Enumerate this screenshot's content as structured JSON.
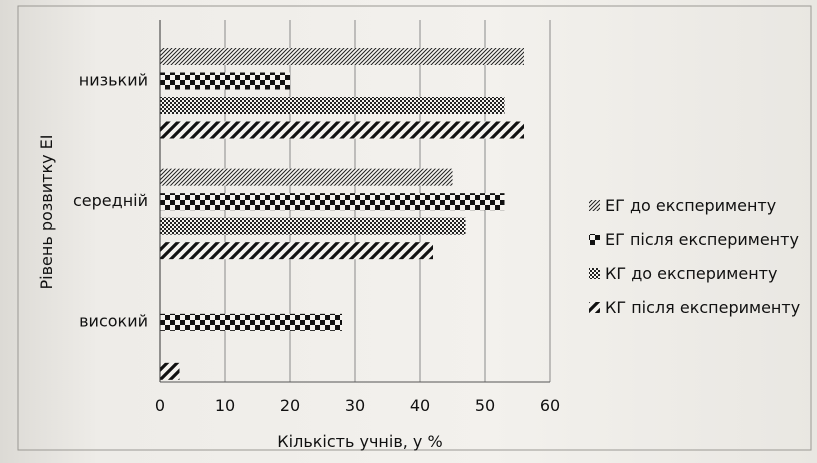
{
  "chart_data": {
    "type": "bar",
    "orientation": "horizontal",
    "categories": [
      "низький",
      "середній",
      "високий"
    ],
    "series": [
      {
        "name": "ЕГ до експерименту",
        "pattern": "diagonal-fine",
        "values": [
          56,
          45,
          0
        ]
      },
      {
        "name": "ЕГ після експерименту",
        "pattern": "checker-large",
        "values": [
          20,
          53,
          28
        ]
      },
      {
        "name": "КГ до експерименту",
        "pattern": "checker-small",
        "values": [
          53,
          47,
          0
        ]
      },
      {
        "name": "КГ після експерименту",
        "pattern": "diagonal-bold",
        "values": [
          56,
          42,
          3
        ]
      }
    ],
    "xlabel": "Кількість учнів, у %",
    "ylabel": "Рівень розвитку ЕІ",
    "xlim": [
      0,
      60
    ],
    "xticks": [
      0,
      10,
      20,
      30,
      40,
      50,
      60
    ],
    "grid": true,
    "legend": "right"
  },
  "colors": {
    "ink": "#111111",
    "grid": "#8a8a8a",
    "paper": "#f1efeb"
  }
}
